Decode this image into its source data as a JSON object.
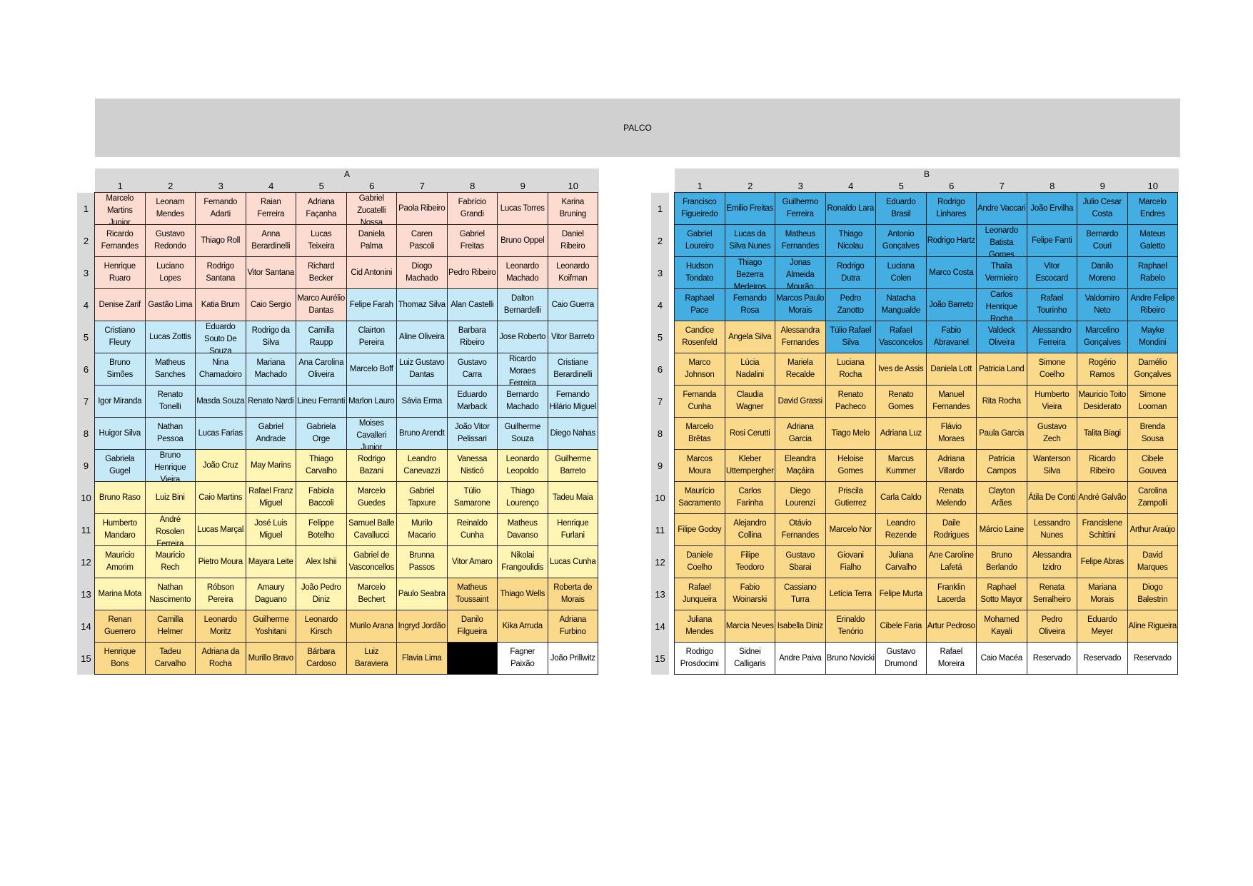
{
  "stage_label": "PALCO",
  "colors": {
    "pink": "#fcdcd1",
    "lightblue": "#c5e9f7",
    "lightyellow": "#fef4b3",
    "gold": "#fbd98a",
    "blue": "#44aee2",
    "black": "#000000",
    "white": "#ffffff"
  },
  "section_a": {
    "label": "A",
    "columns": [
      "1",
      "2",
      "3",
      "4",
      "5",
      "6",
      "7",
      "8",
      "9",
      "10"
    ],
    "rows": [
      "1",
      "2",
      "3",
      "4",
      "5",
      "6",
      "7",
      "8",
      "9",
      "10",
      "11",
      "12",
      "13",
      "14",
      "15"
    ],
    "cells": [
      [
        "Marcelo Martins Junior",
        "Leonam Mendes",
        "Fernando Adarti",
        "Raian Ferreira",
        "Adriana Façanha",
        "Gabriel Zucatelli Nossa",
        "Paola Ribeiro",
        "Fabrício Grandi",
        "Lucas Torres",
        "Karina Bruning"
      ],
      [
        "Ricardo Fernandes",
        "Gustavo Redondo",
        "Thiago Roll",
        "Anna Berardinelli",
        "Lucas Teixeira",
        "Daniela Palma",
        "Caren Pascoli",
        "Gabriel Freitas",
        "Bruno Oppel",
        "Daniel Ribeiro"
      ],
      [
        "Henrique Ruaro",
        "Luciano Lopes",
        "Rodrigo Santana",
        "Vitor Santana",
        "Richard Becker",
        "Cid Antonini",
        "Diogo Machado",
        "Pedro Ribeiro",
        "Leonardo Machado",
        "Leonardo Koifman"
      ],
      [
        "Denise Zarif",
        "Gastão Lima",
        "Katia Brum",
        "Caio Sergio",
        "Marco Aurélio Dantas",
        "Felipe Farah",
        "Thomaz Silva",
        "Alan Castelli",
        "Dalton Bernardelli",
        "Caio Guerra"
      ],
      [
        "Cristiano Fleury",
        "Lucas Zottis",
        "Eduardo Souto De Souza",
        "Rodrigo da Silva",
        "Camilla Raupp",
        "Clairton Pereira",
        "Aline Oliveira",
        "Barbara Ribeiro",
        "Jose Roberto",
        "Vitor Barreto"
      ],
      [
        "Bruno Simões",
        "Matheus Sanches",
        "Nina Chamadoiro",
        "Mariana Machado",
        "Ana Carolina Oliveira",
        "Marcelo Boff",
        "Luiz Gustavo Dantas",
        "Gustavo Carra",
        "Ricardo Moraes Ferreira",
        "Cristiane Berardinelli"
      ],
      [
        "Igor Miranda",
        "Renato Tonelli",
        "Masda Souza",
        "Renato Nardi",
        "Lineu Ferranti",
        "Marlon Lauro",
        "Sávia Erma",
        "Eduardo Marback",
        "Bernardo Machado",
        "Fernando Hilário Miguel"
      ],
      [
        "Huigor Silva",
        "Nathan Pessoa",
        "Lucas Farias",
        "Gabriel Andrade",
        "Gabriela Orge",
        "Moises Cavalleri Junior",
        "Bruno Arendt",
        "João Vitor Pelissari",
        "Guilherme Souza",
        "Diego Nahas"
      ],
      [
        "Gabriela Gugel",
        "Bruno Henrique Vieira",
        "João Cruz",
        "May Marins",
        "Thiago Carvalho",
        "Rodrigo Bazani",
        "Leandro Canevazzi",
        "Vanessa Nisticó",
        "Leonardo Leopoldo",
        "Guilherme Barreto"
      ],
      [
        "Bruno Raso",
        "Luiz Bini",
        "Caio Martins",
        "Rafael Franz Miguel",
        "Fabiola Baccoli",
        "Marcelo Guedes",
        "Gabriel Tapxure",
        "Túlio Samarone",
        "Thiago Lourenço",
        "Tadeu Maia"
      ],
      [
        "Humberto Mandaro",
        "André Rosolen Ferreira",
        "Lucas Marçal",
        "José Luis Miguel",
        "Felippe Botelho",
        "Samuel Balle Cavallucci",
        "Murilo Macario",
        "Reinaldo Cunha",
        "Matheus Davanso",
        "Henrique Furlani"
      ],
      [
        "Mauricio Amorim",
        "Mauricio Rech",
        "Pietro Moura",
        "Mayara Leite",
        "Alex Ishii",
        "Gabriel de Vasconcellos",
        "Brunna Passos",
        "Vitor Amaro",
        "Nikolai Frangoulidis",
        "Lucas Cunha"
      ],
      [
        "Marina Mota",
        "Nathan Nascimento",
        "Róbson Pereira",
        "Amaury Daguano",
        "João Pedro Diniz",
        "Marcelo Bechert",
        "Paulo Seabra",
        "Matheus Toussaint",
        "Thiago Wells",
        "Roberta de Morais"
      ],
      [
        "Renan Guerrero",
        "Camilla Helmer",
        "Leonardo Moritz",
        "Guilherme Yoshitani",
        "Leonardo Kirsch",
        "Murilo Arana",
        "Ingryd Jordão",
        "Danilo Filgueira",
        "Kika Arruda",
        "Adriana Furbino"
      ],
      [
        "Henrique Bons",
        "Tadeu Carvalho",
        "Adriana da Rocha",
        "Murillo Bravo",
        "Bárbara Cardoso",
        "Luiz Baraviera",
        "Flavia Lima",
        "",
        "Fagner Paixão",
        "João Prillwitz"
      ]
    ],
    "fills": [
      [
        "pink",
        "pink",
        "pink",
        "pink",
        "pink",
        "pink",
        "pink",
        "pink",
        "pink",
        "pink"
      ],
      [
        "pink",
        "pink",
        "pink",
        "pink",
        "pink",
        "pink",
        "pink",
        "pink",
        "pink",
        "pink"
      ],
      [
        "pink",
        "pink",
        "pink",
        "pink",
        "pink",
        "pink",
        "pink",
        "pink",
        "pink",
        "pink"
      ],
      [
        "pink",
        "pink",
        "pink",
        "pink",
        "pink",
        "lightblue",
        "lightblue",
        "lightblue",
        "lightblue",
        "lightblue"
      ],
      [
        "lightblue",
        "lightblue",
        "lightblue",
        "lightblue",
        "lightblue",
        "lightblue",
        "lightblue",
        "lightblue",
        "lightblue",
        "lightblue"
      ],
      [
        "lightblue",
        "lightblue",
        "lightblue",
        "lightblue",
        "lightblue",
        "lightblue",
        "lightblue",
        "lightblue",
        "lightblue",
        "lightblue"
      ],
      [
        "lightblue",
        "lightblue",
        "lightblue",
        "lightblue",
        "lightblue",
        "lightblue",
        "lightblue",
        "lightblue",
        "lightblue",
        "lightblue"
      ],
      [
        "lightblue",
        "lightblue",
        "lightblue",
        "lightblue",
        "lightblue",
        "lightblue",
        "lightblue",
        "lightblue",
        "lightblue",
        "lightblue"
      ],
      [
        "lightblue",
        "lightblue",
        "lightyellow",
        "lightyellow",
        "lightyellow",
        "lightyellow",
        "lightyellow",
        "lightyellow",
        "lightyellow",
        "lightyellow"
      ],
      [
        "lightyellow",
        "lightyellow",
        "lightyellow",
        "lightyellow",
        "lightyellow",
        "lightyellow",
        "lightyellow",
        "lightyellow",
        "lightyellow",
        "lightyellow"
      ],
      [
        "lightyellow",
        "lightyellow",
        "lightyellow",
        "lightyellow",
        "lightyellow",
        "lightyellow",
        "lightyellow",
        "lightyellow",
        "lightyellow",
        "lightyellow"
      ],
      [
        "lightyellow",
        "lightyellow",
        "lightyellow",
        "lightyellow",
        "lightyellow",
        "lightyellow",
        "lightyellow",
        "lightyellow",
        "lightyellow",
        "lightyellow"
      ],
      [
        "lightyellow",
        "lightyellow",
        "lightyellow",
        "lightyellow",
        "lightyellow",
        "lightyellow",
        "lightyellow",
        "gold",
        "gold",
        "gold"
      ],
      [
        "gold",
        "gold",
        "gold",
        "gold",
        "gold",
        "gold",
        "gold",
        "gold",
        "gold",
        "gold"
      ],
      [
        "gold",
        "gold",
        "gold",
        "gold",
        "gold",
        "gold",
        "gold",
        "black",
        "white",
        "white"
      ]
    ]
  },
  "section_b": {
    "label": "B",
    "columns": [
      "1",
      "2",
      "3",
      "4",
      "5",
      "6",
      "7",
      "8",
      "9",
      "10"
    ],
    "rows": [
      "1",
      "2",
      "3",
      "4",
      "5",
      "6",
      "7",
      "8",
      "9",
      "10",
      "11",
      "12",
      "13",
      "14",
      "15"
    ],
    "cells": [
      [
        "Francisco Figueiredo",
        "Emilio Freitas",
        "Guilhermo Ferreira",
        "Ronaldo Lara",
        "Eduardo Brasil",
        "Rodrigo Linhares",
        "Andre Vaccari",
        "João Ervilha",
        "Julio Cesar Costa",
        "Marcelo Endres"
      ],
      [
        "Gabriel Loureiro",
        "Lucas da Silva Nunes",
        "Matheus Fernandes",
        "Thiago Nicolau",
        "Antonio Gonçalves",
        "Rodrigo Hartz",
        "Leonardo Batista Gomes",
        "Felipe Fanti",
        "Bernardo Couri",
        "Mateus Galetto"
      ],
      [
        "Hudson Tondato",
        "Thiago Bezerra Medeiros",
        "Jonas Almeida Mourão",
        "Rodrigo Dutra",
        "Luciana Colen",
        "Marco Costa",
        "Thaila Vermieiro",
        "Vitor Escocard",
        "Danilo Moreno",
        "Raphael Rabelo"
      ],
      [
        "Raphael Pace",
        "Fernando Rosa",
        "Marcos Paulo Morais",
        "Pedro Zanotto",
        "Natacha Mangualde",
        "João Barreto",
        "Carlos Henrique Rocha",
        "Rafael Tourinho",
        "Valdomiro Neto",
        "Andre Felipe Ribeiro"
      ],
      [
        "Candice Rosenfeld",
        "Angela Silva",
        "Alessandra Fernandes",
        "Túlio Rafael Silva",
        "Rafael Vasconcelos",
        "Fabio Abravanel",
        "Valdeck Oliveira",
        "Alessandro Ferreira",
        "Marcelino Gonçalves",
        "Mayke Mondini"
      ],
      [
        "Marco Johnson",
        "Lúcia Nadalini",
        "Mariela Recalde",
        "Luciana Rocha",
        "Ives de Assis",
        "Daniela Lott",
        "Patricia Land",
        "Simone Coelho",
        "Rogério Ramos",
        "Damélio Gonçalves"
      ],
      [
        "Fernanda Cunha",
        "Claudia Wagner",
        "David Grassi",
        "Renato Pacheco",
        "Renato Gomes",
        "Manuel Fernandes",
        "Rita Rocha",
        "Humberto Vieira",
        "Mauricio Toito Desiderato",
        "Simone Looman"
      ],
      [
        "Marcelo Brêtas",
        "Rosi Cerutti",
        "Adriana Garcia",
        "Tiago Melo",
        "Adriana Luz",
        "Flávio Moraes",
        "Paula Garcia",
        "Gustavo Zech",
        "Talita Biagi",
        "Brenda Sousa"
      ],
      [
        "Marcos Moura",
        "Kleber Uttempergher",
        "Eleandra Maçáira",
        "Heloise Gomes",
        "Marcus Kummer",
        "Adriana Villardo",
        "Patrícia Campos",
        "Wanterson Silva",
        "Ricardo Ribeiro",
        "Cibele Gouvea"
      ],
      [
        "Maurício Sacramento",
        "Carlos Farinha",
        "Diego Lourenzi",
        "Priscila Gutierrez",
        "Carla Caldo",
        "Renata Melendo",
        "Clayton Arães",
        "Átila De Conti",
        "André Galvão",
        "Carolina Zampolli"
      ],
      [
        "Filipe Godoy",
        "Alejandro Collina",
        "Otávio Fernandes",
        "Marcelo Nor",
        "Leandro Rezende",
        "Daile Rodrigues",
        "Márcio Laine",
        "Lessandro Nunes",
        "Francislene Schittini",
        "Arthur Araújo"
      ],
      [
        "Daniele Coelho",
        "Filipe Teodoro",
        "Gustavo Sbarai",
        "Giovani Fialho",
        "Juliana Carvalho",
        "Ane Caroline Lafetá",
        "Bruno Berlando",
        "Alessandra Izidro",
        "Felipe Abras",
        "David Marques"
      ],
      [
        "Rafael Junqueira",
        "Fabio Woinarski",
        "Cassiano Turra",
        "Letícia Terra",
        "Felipe Murta",
        "Franklin Lacerda",
        "Raphael Sotto Mayor",
        "Renata Serralheiro",
        "Mariana Morais",
        "Diogo Balestrin"
      ],
      [
        "Juliana Mendes",
        "Marcia Neves",
        "Isabella Diniz",
        "Erinaldo Tenório",
        "Cibele Faria",
        "Artur Pedroso",
        "Mohamed Kayali",
        "Pedro Oliveira",
        "Eduardo Meyer",
        "Aline Rigueira"
      ],
      [
        "Rodrigo Prosdocimi",
        "Sidnei Calligaris",
        "Andre Paiva",
        "Bruno Novicki",
        "Gustavo Drumond",
        "Rafael Moreira",
        "Caio Macéa",
        "Reservado",
        "Reservado",
        "Reservado"
      ]
    ],
    "fills": [
      [
        "blue",
        "blue",
        "blue",
        "blue",
        "blue",
        "blue",
        "blue",
        "blue",
        "blue",
        "blue"
      ],
      [
        "blue",
        "blue",
        "blue",
        "blue",
        "blue",
        "blue",
        "blue",
        "blue",
        "blue",
        "blue"
      ],
      [
        "blue",
        "blue",
        "blue",
        "blue",
        "blue",
        "blue",
        "blue",
        "blue",
        "blue",
        "blue"
      ],
      [
        "blue",
        "blue",
        "blue",
        "blue",
        "blue",
        "blue",
        "blue",
        "blue",
        "blue",
        "blue"
      ],
      [
        "gold",
        "gold",
        "gold",
        "blue",
        "blue",
        "blue",
        "blue",
        "blue",
        "blue",
        "blue"
      ],
      [
        "gold",
        "gold",
        "gold",
        "gold",
        "gold",
        "gold",
        "gold",
        "gold",
        "gold",
        "gold"
      ],
      [
        "gold",
        "gold",
        "gold",
        "gold",
        "gold",
        "gold",
        "gold",
        "gold",
        "gold",
        "gold"
      ],
      [
        "gold",
        "gold",
        "gold",
        "gold",
        "gold",
        "gold",
        "gold",
        "gold",
        "gold",
        "gold"
      ],
      [
        "gold",
        "gold",
        "gold",
        "gold",
        "gold",
        "gold",
        "gold",
        "gold",
        "gold",
        "gold"
      ],
      [
        "gold",
        "gold",
        "gold",
        "gold",
        "gold",
        "gold",
        "gold",
        "gold",
        "gold",
        "gold"
      ],
      [
        "gold",
        "gold",
        "gold",
        "gold",
        "gold",
        "gold",
        "gold",
        "gold",
        "gold",
        "gold"
      ],
      [
        "gold",
        "gold",
        "gold",
        "gold",
        "gold",
        "gold",
        "gold",
        "gold",
        "gold",
        "gold"
      ],
      [
        "gold",
        "gold",
        "gold",
        "gold",
        "gold",
        "gold",
        "gold",
        "gold",
        "gold",
        "gold"
      ],
      [
        "gold",
        "gold",
        "gold",
        "gold",
        "gold",
        "gold",
        "gold",
        "gold",
        "gold",
        "gold"
      ],
      [
        "white",
        "white",
        "white",
        "white",
        "white",
        "white",
        "white",
        "white",
        "white",
        "white"
      ]
    ]
  }
}
